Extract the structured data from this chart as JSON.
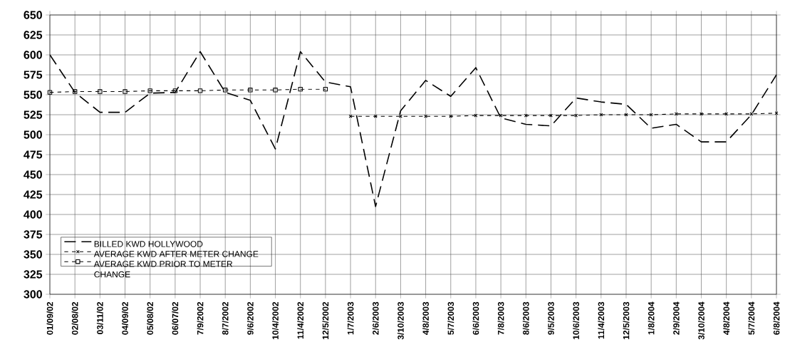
{
  "chart_data": {
    "type": "line",
    "categories": [
      "01/09/02",
      "02/08/02",
      "03/11/02",
      "04/09/02",
      "05/08/02",
      "06/07/02",
      "7/9/2002",
      "8/7/2002",
      "9/6/2002",
      "10/4/2002",
      "11/4/2002",
      "12/5/2002",
      "1/7/2003",
      "2/6/2003",
      "3/10/2003",
      "4/8/2003",
      "5/7/2003",
      "6/6/2003",
      "7/8/2003",
      "8/6/2003",
      "9/5/2003",
      "10/6/2003",
      "11/4/2003",
      "12/5/2003",
      "1/8/2004",
      "2/9/2004",
      "3/10/2004",
      "4/8/2004",
      "5/7/2004",
      "6/8/2004"
    ],
    "series": [
      {
        "name": "BILLED KWD HOLLYWOOD",
        "color": "#000000",
        "marker": "none",
        "line_style": "dashed",
        "values": [
          600,
          553,
          528,
          528,
          552,
          553,
          604,
          553,
          543,
          482,
          604,
          566,
          560,
          410,
          530,
          568,
          548,
          584,
          521,
          513,
          511,
          546,
          541,
          538,
          508,
          513,
          491,
          491,
          525,
          575
        ]
      },
      {
        "name": "AVERAGE KWD AFTER METER CHANGE",
        "color": "#000000",
        "marker": "cross",
        "line_style": "dotted",
        "values": [
          null,
          null,
          null,
          null,
          null,
          null,
          null,
          null,
          null,
          null,
          null,
          null,
          523,
          523,
          523,
          523,
          523,
          524,
          524,
          524,
          524,
          524,
          525,
          525,
          525,
          526,
          526,
          526,
          526,
          527
        ]
      },
      {
        "name": "AVERAGE KWD PRIOR TO METER CHANGE",
        "color": "#000000",
        "marker": "square",
        "line_style": "dotted",
        "values": [
          553,
          554,
          554,
          554,
          555,
          555,
          555,
          556,
          556,
          556,
          557,
          557,
          null,
          null,
          null,
          null,
          null,
          null,
          null,
          null,
          null,
          null,
          null,
          null,
          null,
          null,
          null,
          null,
          null,
          null
        ]
      }
    ],
    "ylim": [
      300,
      650
    ],
    "yticks": [
      300,
      325,
      350,
      375,
      400,
      425,
      450,
      475,
      500,
      525,
      550,
      575,
      600,
      625,
      650
    ],
    "grid": true,
    "legend": "bottom left"
  }
}
